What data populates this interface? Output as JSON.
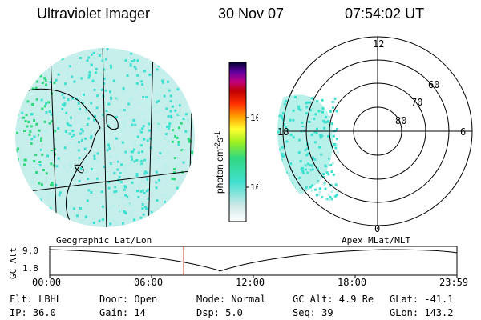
{
  "header": {
    "instrument": "Ultraviolet Imager",
    "date": "30 Nov 07",
    "time": "07:54:02 UT"
  },
  "colorbar": {
    "unit_label": "photon cm",
    "unit_exp1": "-2",
    "unit_s": "s",
    "unit_exp2": "-1",
    "tick_100": "100",
    "tick_10": "10"
  },
  "polar_plot": {
    "mlt_12": "12",
    "mlt_6": "6",
    "mlt_18": "18",
    "mlt_0": "0",
    "lat_60": "60",
    "lat_70": "70",
    "lat_80": "80"
  },
  "left_label": "Geographic Lat/Lon",
  "right_label": "Apex MLat/MLT",
  "timeline": {
    "ylabel": "GC Alt",
    "tick_top": "9.0",
    "tick_bottom": "1.8",
    "x_ticks": [
      "00:00",
      "06:00",
      "12:00",
      "18:00",
      "23:59"
    ],
    "current_time_hours": 7.9
  },
  "info": {
    "flt": "Flt: LBHL",
    "door": "Door: Open",
    "mode": "Mode: Normal",
    "gc_alt": "GC Alt: 4.9 Re",
    "glat": "GLat: -41.1",
    "ip": "IP: 36.0",
    "gain": "Gain: 14",
    "dsp": "Dsp:   5.0",
    "seq": "Seq: 39",
    "glon": "GLon: 143.2"
  },
  "colors": {
    "aurora_cyan": "#40e0d0",
    "aurora_light": "#b8f0ea",
    "aurora_green": "#30d880",
    "marker_red": "#e00000"
  }
}
